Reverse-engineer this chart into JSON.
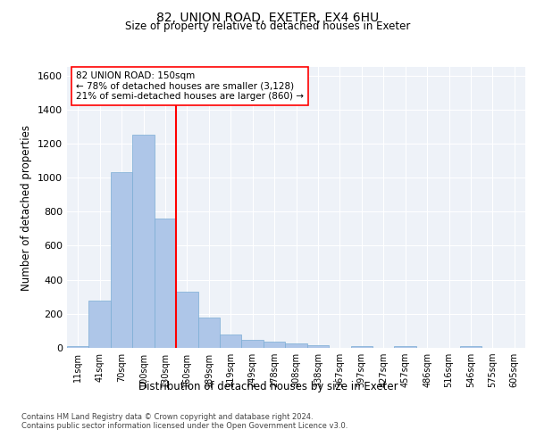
{
  "title_line1": "82, UNION ROAD, EXETER, EX4 6HU",
  "title_line2": "Size of property relative to detached houses in Exeter",
  "xlabel": "Distribution of detached houses by size in Exeter",
  "ylabel": "Number of detached properties",
  "bin_labels": [
    "11sqm",
    "41sqm",
    "70sqm",
    "100sqm",
    "130sqm",
    "160sqm",
    "189sqm",
    "219sqm",
    "249sqm",
    "278sqm",
    "308sqm",
    "338sqm",
    "367sqm",
    "397sqm",
    "427sqm",
    "457sqm",
    "486sqm",
    "516sqm",
    "546sqm",
    "575sqm",
    "605sqm"
  ],
  "bar_values": [
    10,
    280,
    1030,
    1250,
    760,
    330,
    180,
    80,
    45,
    38,
    27,
    18,
    0,
    12,
    0,
    13,
    0,
    0,
    13,
    0,
    0
  ],
  "bar_color": "#aec6e8",
  "bar_edgecolor": "#7aadd4",
  "vline_x": 4.5,
  "vline_color": "red",
  "annotation_line1": "82 UNION ROAD: 150sqm",
  "annotation_line2": "← 78% of detached houses are smaller (3,128)",
  "annotation_line3": "21% of semi-detached houses are larger (860) →",
  "annotation_box_color": "white",
  "annotation_box_edgecolor": "red",
  "ylim": [
    0,
    1650
  ],
  "yticks": [
    0,
    200,
    400,
    600,
    800,
    1000,
    1200,
    1400,
    1600
  ],
  "footer_line1": "Contains HM Land Registry data © Crown copyright and database right 2024.",
  "footer_line2": "Contains public sector information licensed under the Open Government Licence v3.0.",
  "plot_bg_color": "#eef2f8"
}
